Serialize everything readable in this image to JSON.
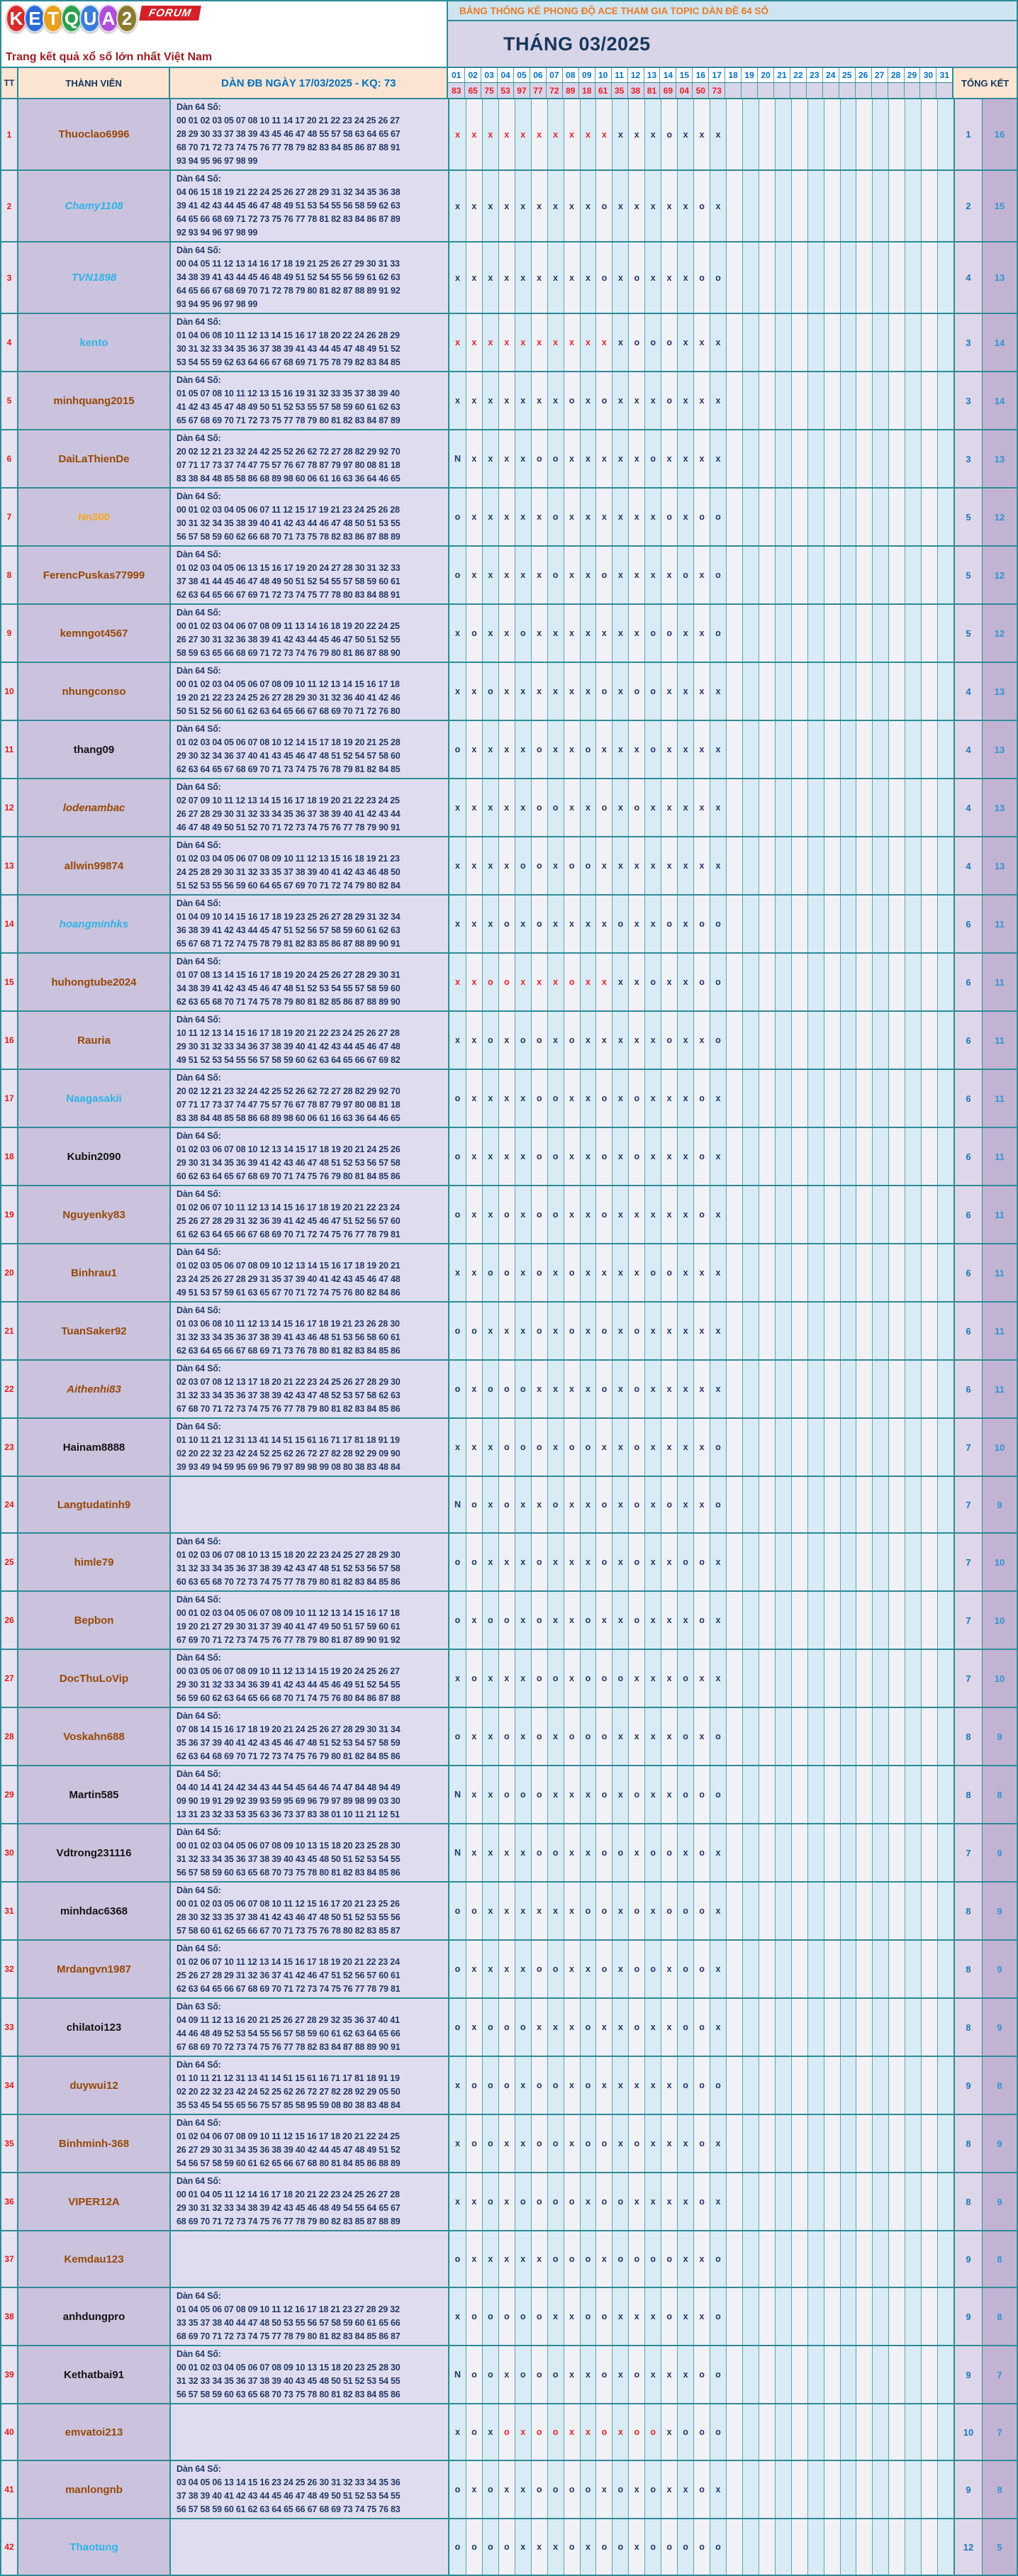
{
  "logo": {
    "brand_letters": [
      {
        "ch": "K",
        "color": "#d92b2b"
      },
      {
        "ch": "E",
        "color": "#2b6bd9"
      },
      {
        "ch": "T",
        "color": "#e8a01f"
      },
      {
        "ch": "Q",
        "color": "#2ba04f"
      },
      {
        "ch": "U",
        "color": "#3b7dd8"
      },
      {
        "ch": "A",
        "color": "#b04fd9"
      },
      {
        "ch": "2",
        "color": "#8a7a2f"
      }
    ],
    "forum": "FORUM",
    "tagline": "Trang kết quả xổ số lớn nhất Việt Nam"
  },
  "banner": {
    "title": "BẢNG THỐNG KÊ PHONG ĐỘ ACE THAM GIA TOPIC DÀN ĐỀ 64 SỐ",
    "month": "THÁNG 03/2025"
  },
  "header": {
    "tt": "TT",
    "member": "THÀNH VIÊN",
    "dan": "DÀN ĐB NGÀY 17/03/2025 - KQ: 73",
    "total": "TỔNG KẾT"
  },
  "days": [
    "01",
    "02",
    "03",
    "04",
    "05",
    "06",
    "07",
    "08",
    "09",
    "10",
    "11",
    "12",
    "13",
    "14",
    "15",
    "16",
    "17",
    "18",
    "19",
    "20",
    "21",
    "22",
    "23",
    "24",
    "25",
    "26",
    "27",
    "28",
    "29",
    "30",
    "31"
  ],
  "results": [
    "83",
    "65",
    "75",
    "53",
    "97",
    "77",
    "72",
    "89",
    "18",
    "61",
    "35",
    "38",
    "81",
    "69",
    "04",
    "50",
    "73"
  ],
  "colors": {
    "border_teal": "#2e8b98",
    "mark_navy": "#1f3a67",
    "mark_red": "#e9262b",
    "kq_red": "#ee1c25",
    "day_blue": "#0070c0"
  },
  "rows": [
    {
      "tt": "1",
      "name": "Thuoclao6996",
      "color": "brown",
      "italic": false,
      "label": "Dàn 64 Số:",
      "lines": [
        "00 01 02 03 05 07 08 10 11 14 17 20 21 22 23 24 25 26 27",
        "28 29 30 33 37 38 39 43 45 46 47 48 55 57 58 63 64 65 67",
        "68 70 71 72 73 74 75 76 77 78 79 82 83 84 85 86 87 88 91",
        "93 94 95 96 97 98 99"
      ],
      "marks": "xxxxxxxxxxxxxoxxx",
      "red": [
        1,
        10
      ],
      "miss": "1",
      "win": "16"
    },
    {
      "tt": "2",
      "name": "Chamy1108",
      "color": "blue",
      "italic": true,
      "label": "Dàn 64 Số:",
      "lines": [
        "04 06 15 18 19 21 22 24 25 26 27 28 29 31 32 34 35 36 38",
        "39 41 42 43 44 45 46 47 48 49 51 53 54 55 56 58 59 62 63",
        "64 65 66 68 69 71 72 73 75 76 77 78 81 82 83 84 86 87 89",
        "92 93 94 96 97 98 99"
      ],
      "marks": "xxxxxxxxxoxxxxxox",
      "red": null,
      "miss": "2",
      "win": "15"
    },
    {
      "tt": "3",
      "name": "TVN1898",
      "color": "blue",
      "italic": true,
      "label": "Dàn 64 Số:",
      "lines": [
        "00 04 05 11 12 13 14 16 17 18 19 21 25 26 27 29 30 31 33",
        "34 38 39 41 43 44 45 46 48 49 51 52 54 55 56 59 61 62 63",
        "64 65 66 67 68 69 70 71 72 78 79 80 81 82 87 88 89 91 92",
        "93 94 95 96 97 98 99"
      ],
      "marks": "xxxxxxxxxoxoxxxoo",
      "red": null,
      "miss": "4",
      "win": "13"
    },
    {
      "tt": "4",
      "name": "kento",
      "color": "blue",
      "italic": false,
      "label": "Dàn 64 Số:",
      "lines": [
        "01 04 06 08 10 11 12 13 14 15 16 17 18 20 22 24 26 28 29",
        "30 31 32 33 34 35 36 37 38 39 41 43 44 45 47 48 49 51 52",
        "53 54 55 59 62 63 64 66 67 68 69 71 75 78 79 82 83 84 85"
      ],
      "marks": "xxxxxxxxxxxoooxxx",
      "red": [
        1,
        10
      ],
      "miss": "3",
      "win": "14"
    },
    {
      "tt": "5",
      "name": "minhquang2015",
      "color": "brown",
      "italic": false,
      "label": "Dàn 64 Số:",
      "lines": [
        "01 05 07 08 10 11 12 13 15 16 19 31 32 33 35 37 38 39 40",
        "41 42 43 45 47 48 49 50 51 52 53 55 57 58 59 60 61 62 63",
        "65 67 68 69 70 71 72 73 75 77 78 79 80 81 82 83 84 87 89"
      ],
      "marks": "xxxxxxxoxoxxxoxxx",
      "red": null,
      "miss": "3",
      "win": "14"
    },
    {
      "tt": "6",
      "name": "DaiLaThienDe",
      "color": "brown",
      "italic": false,
      "label": "Dàn 64 Số:",
      "lines": [
        "20 02 12 21 23 32 24 42 25 52 26 62 72 27 28 82 29 92 70",
        "07 71 17 73 37 74 47 75 57 76 67 78 87 79 97 80 08 81 18",
        "83 38 84 48 85 58 86 68 89 98 60 06 61 16 63 36 64 46 65"
      ],
      "marks": "Nxxxxooxxxxxoxxxx",
      "red": null,
      "miss": "3",
      "win": "13"
    },
    {
      "tt": "7",
      "name": "Nn300",
      "color": "orange",
      "italic": false,
      "label": "Dàn 64 Số:",
      "lines": [
        "00 01 02 03 04 05 06 07 11 12 15 17 19 21 23 24 25 26 28",
        "30 31 32 34 35 38 39 40 41 42 43 44 46 47 48 50 51 53 55",
        "56 57 58 59 60 62 66 68 70 71 73 75 78 82 83 86 87 88 89"
      ],
      "marks": "oxxxxxoxxxxxxoxoo",
      "red": null,
      "miss": "5",
      "win": "12"
    },
    {
      "tt": "8",
      "name": "FerencPuskas77999",
      "color": "brown",
      "italic": false,
      "label": "Dàn 64 Số:",
      "lines": [
        "01 02 03 04 05 06 13 15 16 17 19 20 24 27 28 30 31 32 33",
        "37 38 41 44 45 46 47 48 49 50 51 52 54 55 57 58 59 60 61",
        "62 63 64 65 66 67 69 71 72 73 74 75 77 78 80 83 84 88 91"
      ],
      "marks": "oxxxxxoxxoxxxxoxo",
      "red": null,
      "miss": "5",
      "win": "12"
    },
    {
      "tt": "9",
      "name": "kemngot4567",
      "color": "brown",
      "italic": false,
      "label": "Dàn 64 Số:",
      "lines": [
        "00 01 02 03 04 06 07 08 09 11 13 14 16 18 19 20 22 24 25",
        "26 27 30 31 32 36 38 39 41 42 43 44 45 46 47 50 51 52 55",
        "58 59 63 65 66 68 69 71 72 73 74 76 79 80 81 86 87 88 90"
      ],
      "marks": "xoxxoxxxxxxxooxxo",
      "red": null,
      "miss": "5",
      "win": "12"
    },
    {
      "tt": "10",
      "name": "nhungconso",
      "color": "brown",
      "italic": false,
      "label": "Dàn 64 Số:",
      "lines": [
        "00 01 02 03 04 05 06 07 08 09 10 11 12 13 14 15 16 17 18",
        "19 20 21 22 23 24 25 26 27 28 29 30 31 32 36 40 41 42 46",
        "50 51 52 56 60 61 62 63 64 65 66 67 68 69 70 71 72 76 80"
      ],
      "marks": "xxoxxxxxxoxooxxxx",
      "red": null,
      "miss": "4",
      "win": "13"
    },
    {
      "tt": "11",
      "name": "thang09",
      "color": "black",
      "italic": false,
      "label": "Dàn 64 Số:",
      "lines": [
        "01 02 03 04 05 06 07 08 10 12 14 15 17 18 19 20 21 25 28",
        "29 30 32 34 36 37 40 41 43 45 46 47 48 51 52 54 57 58 60",
        "62 63 64 65 67 68 69 70 71 73 74 75 76 78 79 81 82 84 85"
      ],
      "marks": "oxxxxoxxoxxxoxxxx",
      "red": null,
      "miss": "4",
      "win": "13"
    },
    {
      "tt": "12",
      "name": "lodenambac",
      "color": "brown",
      "italic": true,
      "label": "Dàn 64 Số:",
      "lines": [
        "02 07 09 10 11 12 13 14 15 16 17 18 19 20 21 22 23 24 25",
        "26 27 28 29 30 31 32 33 34 35 36 37 38 39 40 41 42 43 44",
        "46 47 48 49 50 51 52 70 71 72 73 74 75 76 77 78 79 90 91"
      ],
      "marks": "xxxxxooxxoxoxxxxx",
      "red": null,
      "miss": "4",
      "win": "13"
    },
    {
      "tt": "13",
      "name": "allwin99874",
      "color": "brown",
      "italic": false,
      "label": "Dàn 64 Số:",
      "lines": [
        "01 02 03 04 05 06 07 08 09 10 11 12 13 15 16 18 19 21 23",
        "24 25 28 29 30 31 32 33 35 37 38 39 40 41 42 43 46 48 50",
        "51 52 53 55 56 59 60 64 65 67 69 70 71 72 74 79 80 82 84"
      ],
      "marks": "xxxxooxooxxxxxxxx",
      "red": null,
      "miss": "4",
      "win": "13"
    },
    {
      "tt": "14",
      "name": "hoangminhks",
      "color": "blue",
      "italic": true,
      "label": "Dàn 64 Số:",
      "lines": [
        "01 04 09 10 14 15 16 17 18 19 23 25 26 27 28 29 31 32 34",
        "36 38 39 41 42 43 44 45 47 51 52 56 57 58 59 60 61 62 63",
        "65 67 68 71 72 74 75 78 79 81 82 83 85 86 87 88 89 90 91"
      ],
      "marks": "xxxoxoxxxxoxxoxoo",
      "red": null,
      "miss": "6",
      "win": "11"
    },
    {
      "tt": "15",
      "name": "huhongtube2024",
      "color": "brown",
      "italic": false,
      "label": "Dàn 64 Số:",
      "lines": [
        "01 07 08 13 14 15 16 17 18 19 20 24 25 26 27 28 29 30 31",
        "34 38 39 41 42 43 45 46 47 48 51 52 53 54 55 57 58 59 60",
        "62 63 65 68 70 71 74 75 78 79 80 81 82 85 86 87 88 89 90"
      ],
      "marks": "xxooxxxoxxxxoxxoo",
      "red": [
        1,
        10
      ],
      "miss": "6",
      "win": "11"
    },
    {
      "tt": "16",
      "name": "Rauria",
      "color": "brown",
      "italic": false,
      "label": "Dàn 64 Số:",
      "lines": [
        "10 11 12 13 14 15 16 17 18 19 20 21 22 23 24 25 26 27 28",
        "29 30 31 32 33 34 36 37 38 39 40 41 42 43 44 45 46 47 48",
        "49 51 52 53 54 55 56 57 58 59 60 62 63 64 65 66 67 69 82"
      ],
      "marks": "xxoxooxoxxxxxoxxo",
      "red": null,
      "miss": "6",
      "win": "11"
    },
    {
      "tt": "17",
      "name": "Naagasakii",
      "color": "blue",
      "italic": false,
      "label": "Dàn 64 Số:",
      "lines": [
        "20 02 12 21 23 32 24 42 25 52 26 62 72 27 28 82 29 92 70",
        "07 71 17 73 37 74 47 75 57 76 67 78 87 79 97 80 08 81 18",
        "83 38 84 48 85 58 86 68 89 98 60 06 61 16 63 36 64 46 65"
      ],
      "marks": "oxxxxooxxoxoxxxox",
      "red": null,
      "miss": "6",
      "win": "11"
    },
    {
      "tt": "18",
      "name": "Kubin2090",
      "color": "black",
      "italic": false,
      "label": "Dàn 64 Số:",
      "lines": [
        "01 02 03 06 07 08 10 12 13 14 15 17 18 19 20 21 24 25 26",
        "29 30 31 34 35 36 39 41 42 43 46 47 48 51 52 53 56 57 58",
        "60 62 63 64 65 67 68 69 70 71 74 75 76 79 80 81 84 85 86"
      ],
      "marks": "oxxxxooxxoxoxxxox",
      "red": null,
      "miss": "6",
      "win": "11"
    },
    {
      "tt": "19",
      "name": "Nguyenky83",
      "color": "brown",
      "italic": false,
      "label": "Dàn 64 Số:",
      "lines": [
        "01 02 06 07 10 11 12 13 14 15 16 17 18 19 20 21 22 23 24",
        "25 26 27 28 29 31 32 36 39 41 42 45 46 47 51 52 56 57 60",
        "61 62 63 64 65 66 67 68 69 70 71 72 74 75 76 77 78 79 81"
      ],
      "marks": "oxxoxooxxoxxxxxox",
      "red": null,
      "miss": "6",
      "win": "11"
    },
    {
      "tt": "20",
      "name": "Binhrau1",
      "color": "brown",
      "italic": false,
      "label": "Dàn 64 Số:",
      "lines": [
        "01 02 03 05 06 07 08 09 10 12 13 14 15 16 17 18 19 20 21",
        "23 24 25 26 27 28 29 31 35 37 39 40 41 42 43 45 46 47 48",
        "49 51 53 57 59 61 63 65 67 70 71 72 74 75 76 80 82 84 86"
      ],
      "marks": "xxooxoxoxxxxooxxx",
      "red": null,
      "miss": "6",
      "win": "11"
    },
    {
      "tt": "21",
      "name": "TuanSaker92",
      "color": "brown",
      "italic": false,
      "label": "Dàn 64 Số:",
      "lines": [
        "01 03 06 08 10 11 12 13 14 15 16 17 18 19 21 23 26 28 30",
        "31 32 33 34 35 36 37 38 39 41 43 46 48 51 53 56 58 60 61",
        "62 63 64 65 66 67 68 69 71 73 76 78 80 81 82 83 84 85 86"
      ],
      "marks": "ooxxxoxoxoxoxxxxx",
      "red": null,
      "miss": "6",
      "win": "11"
    },
    {
      "tt": "22",
      "name": "Aithenhi83",
      "color": "brown",
      "italic": true,
      "label": "Dàn 64 Số:",
      "lines": [
        "02 03 07 08 12 13 17 18 20 21 22 23 24 25 26 27 28 29 30",
        "31 32 33 34 35 36 37 38 39 42 43 47 48 52 53 57 58 62 63",
        "67 68 70 71 72 73 74 75 76 77 78 79 80 81 82 83 84 85 86"
      ],
      "marks": "oxoooxxxxoxoxxxxx",
      "red": null,
      "miss": "6",
      "win": "11"
    },
    {
      "tt": "23",
      "name": "Hainam8888",
      "color": "black",
      "italic": false,
      "label": "Dàn 64 Số:",
      "lines": [
        "01 10 11 21 12 31 13 41 14 51 15 61 16 71 17 81 18 91 19",
        "02 20 22 32 23 42 24 52 25 62 26 72 27 82 28 92 29 09 90",
        "39 93 49 94 59 95 69 96 79 97 89 98 99 08 80 38 83 48 84"
      ],
      "marks": "xxxoooxooxxoxxxxo",
      "red": null,
      "miss": "7",
      "win": "10"
    },
    {
      "tt": "24",
      "name": "Langtudatinh9",
      "color": "brown",
      "italic": false,
      "label": "",
      "lines": [],
      "marks": "Noxoxxoxxoxoxoxxo",
      "red": null,
      "miss": "7",
      "win": "9"
    },
    {
      "tt": "25",
      "name": "himle79",
      "color": "brown",
      "italic": false,
      "label": "Dàn 64 Số:",
      "lines": [
        "01 02 03 06 07 08 10 13 15 18 20 22 23 24 25 27 28 29 30",
        "31 32 33 34 35 36 37 38 39 42 43 47 48 51 52 53 56 57 58",
        "60 63 65 68 70 72 73 74 75 77 78 79 80 81 82 83 84 85 86"
      ],
      "marks": "ooxxxoxxxoxoxxoox",
      "red": null,
      "miss": "7",
      "win": "10"
    },
    {
      "tt": "26",
      "name": "Bepbon",
      "color": "brown",
      "italic": false,
      "label": "Dàn 64 Số:",
      "lines": [
        "00 01 02 03 04 05 06 07 08 09 10 11 12 13 14 15 16 17 18",
        "19 20 21 27 29 30 31 37 39 40 41 47 49 50 51 57 59 60 61",
        "67 69 70 71 72 73 74 75 76 77 78 79 80 81 87 89 90 91 92"
      ],
      "marks": "oxooxoxxoxxoxxxox",
      "red": null,
      "miss": "7",
      "win": "10"
    },
    {
      "tt": "27",
      "name": "DocThuLoVip",
      "color": "brown",
      "italic": false,
      "label": "Dàn 64 Số:",
      "lines": [
        "00 03 05 06 07 08 09 10 11 12 13 14 15 19 20 24 25 26 27",
        "29 30 31 32 33 34 36 39 41 42 43 44 45 46 49 51 52 54 55",
        "56 59 60 62 63 64 65 66 68 70 71 74 75 76 80 84 86 87 88"
      ],
      "marks": "xoxxxooxoooxxxoxx",
      "red": null,
      "miss": "7",
      "win": "10"
    },
    {
      "tt": "28",
      "name": "Voskahn688",
      "color": "brown",
      "italic": false,
      "label": "Dàn 64 Số:",
      "lines": [
        "07 08 14 15 16 17 18 19 20 21 24 25 26 27 28 29 30 31 34",
        "35 36 37 39 40 41 42 43 45 46 47 48 51 52 53 54 57 58 59",
        "62 63 64 68 69 70 71 72 73 74 75 76 79 80 81 82 84 85 86"
      ],
      "marks": "oxxoxoxoooxxxxoxo",
      "red": null,
      "miss": "8",
      "win": "9"
    },
    {
      "tt": "29",
      "name": "Martin585",
      "color": "black",
      "italic": false,
      "label": "Dàn 64 Số:",
      "lines": [
        "04 40 14 41 24 42 34 43 44 54 45 64 46 74 47 84 48 94 49",
        "09 90 19 91 29 92 39 93 59 95 69 96 79 97 89 98 99 03 30",
        "13 31 23 32 33 53 35 63 36 73 37 83 38 01 10 11 21 12 51"
      ],
      "marks": "Nxxoooxxxoxoxxooo",
      "red": null,
      "miss": "8",
      "win": "8"
    },
    {
      "tt": "30",
      "name": "Vdtrong231116",
      "color": "black",
      "italic": false,
      "label": "Dàn 64 Số:",
      "lines": [
        "00 01 02 03 04 05 06 07 08 09 10 13 15 18 20 23 25 28 30",
        "31 32 33 34 35 36 37 38 39 40 43 45 48 50 51 52 53 54 55",
        "56 57 58 59 60 63 65 68 70 73 75 78 80 81 82 83 84 85 86"
      ],
      "marks": "Nxxxxooxxooxooxox",
      "red": null,
      "miss": "7",
      "win": "9"
    },
    {
      "tt": "31",
      "name": "minhdac6368",
      "color": "black",
      "italic": false,
      "label": "Dàn 64 Số:",
      "lines": [
        "00 01 02 03 05 06 07 08 10 11 12 15 16 17 20 21 23 25 26",
        "28 30 32 33 35 37 38 41 42 43 46 47 48 50 51 52 53 55 56",
        "57 58 60 61 62 65 66 67 70 71 73 75 76 78 80 82 83 85 87"
      ],
      "marks": "ooxxxxxxooxoxooox",
      "red": null,
      "miss": "8",
      "win": "9"
    },
    {
      "tt": "32",
      "name": "Mrdangvn1987",
      "color": "brown",
      "italic": false,
      "label": "Dàn 64 Số:",
      "lines": [
        "01 02 06 07 10 11 12 13 14 15 16 17 18 19 20 21 22 23 24",
        "25 26 27 28 29 31 32 36 37 41 42 46 47 51 52 56 57 60 61",
        "62 63 64 65 66 67 68 69 70 71 72 73 74 75 76 77 78 79 81"
      ],
      "marks": "oxxxxooxxoxooxoox",
      "red": null,
      "miss": "8",
      "win": "9"
    },
    {
      "tt": "33",
      "name": "chilatoi123",
      "color": "black",
      "italic": false,
      "label": "Dàn 63 Số:",
      "lines": [
        "04 09 11 12 13 16 20 21 25 26 27 28 29 32 35 36 37 40 41",
        "44 46 48 49 52 53 54 55 56 57 58 59 60 61 62 63 64 65 66",
        "67 68 69 70 72 73 74 75 76 77 78 82 83 84 87 88 89 90 91"
      ],
      "marks": "oxoooxxxoxxoxxoox",
      "red": null,
      "miss": "8",
      "win": "9"
    },
    {
      "tt": "34",
      "name": "duywui12",
      "color": "brown",
      "italic": false,
      "label": "Dàn 64 Số:",
      "lines": [
        "01 10 11 21 12 31 13 41 14 51 15 61 16 71 17 81 18 91 19",
        "02 20 22 32 23 42 24 52 25 62 26 72 27 82 28 92 29 05 50",
        "35 53 45 54 55 65 56 75 57 85 58 95 59 08 80 38 83 48 84"
      ],
      "marks": "xoooxooxoxxxxxooo",
      "red": null,
      "miss": "9",
      "win": "8"
    },
    {
      "tt": "35",
      "name": "Binhminh-368",
      "color": "brown",
      "italic": false,
      "label": "Dàn 64 Số:",
      "lines": [
        "01 02 04 06 07 08 09 10 11 12 15 16 17 18 20 21 22 24 25",
        "26 27 29 30 31 34 35 36 38 39 40 42 44 45 47 48 49 51 52",
        "54 56 57 58 59 60 61 62 65 66 67 68 80 81 84 85 86 88 89"
      ],
      "marks": "xooxxooxooxoxxxox",
      "red": null,
      "miss": "8",
      "win": "9"
    },
    {
      "tt": "36",
      "name": "VIPER12A",
      "color": "brown",
      "italic": false,
      "label": "Dàn 64 Số:",
      "lines": [
        "00 01 04 05 11 12 14 16 17 18 20 21 22 23 24 25 26 27 28",
        "29 30 31 32 33 34 38 39 42 43 45 46 48 49 54 55 64 65 67",
        "68 69 70 71 72 73 74 75 76 77 78 79 80 82 83 85 87 88 89"
      ],
      "marks": "xxoxooooxooxxxxox",
      "red": null,
      "miss": "8",
      "win": "9"
    },
    {
      "tt": "37",
      "name": "Kemdau123",
      "color": "brown",
      "italic": false,
      "label": "",
      "lines": [],
      "marks": "oxxxxxoooxooooxxo",
      "red": null,
      "miss": "9",
      "win": "8"
    },
    {
      "tt": "38",
      "name": "anhdungpro",
      "color": "black",
      "italic": false,
      "label": "Dàn 64 Số:",
      "lines": [
        "01 04 05 06 07 08 09 10 11 12 16 17 18 21 23 27 28 29 32",
        "33 35 37 38 40 44 47 48 50 53 55 56 57 58 59 60 61 65 66",
        "68 69 70 71 72 73 74 75 77 78 79 80 81 82 83 84 85 86 87"
      ],
      "marks": "xoooooxxooxxxoxxo",
      "red": null,
      "miss": "9",
      "win": "8"
    },
    {
      "tt": "39",
      "name": "Kethatbai91",
      "color": "black",
      "italic": false,
      "label": "Dàn 64 Số:",
      "lines": [
        "00 01 02 03 04 05 06 07 08 09 10 13 15 18 20 23 25 28 30",
        "31 32 33 34 35 36 37 38 39 40 43 45 48 50 51 52 53 54 55",
        "56 57 58 59 60 63 65 68 70 73 75 78 80 81 82 83 84 85 86"
      ],
      "marks": "Nooxoooxxoxoxxxoo",
      "red": null,
      "miss": "9",
      "win": "7"
    },
    {
      "tt": "40",
      "name": "emvatoi213",
      "color": "brown",
      "italic": false,
      "label": "",
      "lines": [],
      "marks": "xoxoxooxxoxooxooo",
      "red": [
        4,
        13
      ],
      "miss": "10",
      "win": "7"
    },
    {
      "tt": "41",
      "name": "manlongnb",
      "color": "brown",
      "italic": false,
      "label": "Dàn 64 Số:",
      "lines": [
        "03 04 05 06 13 14 15 16 23 24 25 26 30 31 32 33 34 35 36",
        "37 38 39 40 41 42 43 44 45 46 47 48 49 50 51 52 53 54 55",
        "56 57 58 59 60 61 62 63 64 65 66 67 68 69 73 74 75 76 83"
      ],
      "marks": "oxoxxoooo xoxoxxox",
      "red": null,
      "miss": "9",
      "win": "8"
    },
    {
      "tt": "42",
      "name": "Thaotung",
      "color": "blue",
      "italic": false,
      "label": "",
      "lines": [],
      "marks": "ooooxxxoxooxooooo",
      "red": null,
      "miss": "12",
      "win": "5"
    }
  ]
}
